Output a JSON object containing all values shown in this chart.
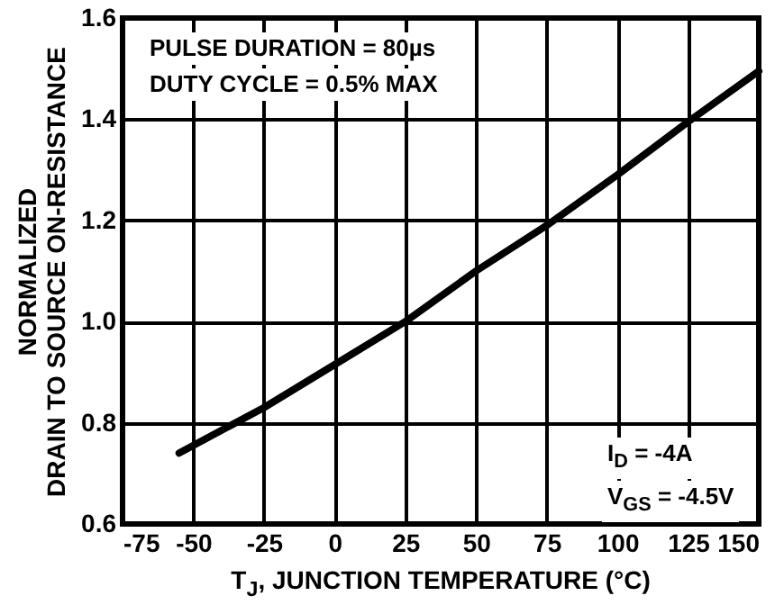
{
  "chart_data": {
    "type": "line",
    "xlabel": "T$_{J}$, JUNCTION TEMPERATURE (°C)",
    "ylabel": "NORMALIZED\nDRAIN TO SOURCE ON-RESISTANCE",
    "x": [
      -55,
      -25,
      0,
      25,
      50,
      75,
      100,
      125,
      150
    ],
    "series": [
      {
        "color": "#000000",
        "values": [
          0.74,
          0.83,
          0.915,
          1.0,
          1.1,
          1.19,
          1.29,
          1.395,
          1.495
        ]
      }
    ],
    "xlim": [
      -75,
      150
    ],
    "xticks": [
      -75,
      -50,
      -25,
      0,
      25,
      50,
      75,
      100,
      125,
      150
    ],
    "ylim": [
      0.6,
      1.6
    ],
    "yticks": [
      0.6,
      0.8,
      {
        "value": 1,
        "label": "1.0"
      },
      1.2,
      1.4,
      1.6
    ],
    "grid": true,
    "marker": "none",
    "line_style": "solid",
    "annotations": [
      "PULSE DURATION = 80µs",
      "DUTY CYCLE = 0.5% MAX",
      "I$_{D}$ = -4A",
      "V$_{GS}$ = -4.5V"
    ]
  }
}
